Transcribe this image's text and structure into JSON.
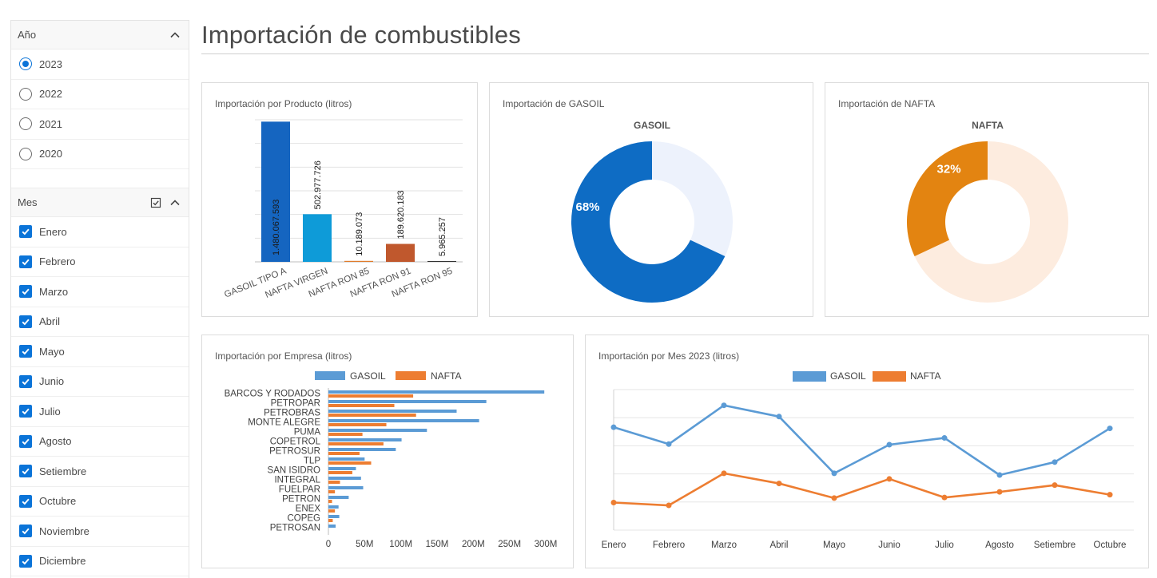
{
  "filters": {
    "year": {
      "title": "Año",
      "options": [
        "2023",
        "2022",
        "2021",
        "2020"
      ],
      "selected": "2023"
    },
    "month": {
      "title": "Mes",
      "options": [
        "Enero",
        "Febrero",
        "Marzo",
        "Abril",
        "Mayo",
        "Junio",
        "Julio",
        "Agosto",
        "Setiembre",
        "Octubre",
        "Noviembre",
        "Diciembre"
      ],
      "checked": [
        "Enero",
        "Febrero",
        "Marzo",
        "Abril",
        "Mayo",
        "Junio",
        "Julio",
        "Agosto",
        "Setiembre",
        "Octubre",
        "Noviembre",
        "Diciembre"
      ]
    }
  },
  "page": {
    "title": "Importación de combustibles"
  },
  "colors": {
    "accent": "#0b74d8",
    "gasoil": "#0e6cc4",
    "nafta": "#e38411",
    "line_gasoil": "#5b9bd5",
    "line_nafta": "#ed7d31"
  },
  "chart_data": [
    {
      "type": "bar",
      "title": "Importación por Producto (litros)",
      "categories": [
        "GASOIL TIPO A",
        "NAFTA VIRGEN",
        "NAFTA RON 85",
        "NAFTA RON 91",
        "NAFTA RON 95"
      ],
      "values": [
        1480067593,
        502977726,
        10189073,
        189620183,
        5965257
      ],
      "data_labels": [
        "1.480.067.593",
        "502.977.726",
        "10.189.073",
        "189.620.183",
        "5.965.257"
      ],
      "bar_colors": [
        "#1565c0",
        "#0e9bd8",
        "#e07b2a",
        "#c0582d",
        "#333333"
      ],
      "ylim": [
        0,
        1500000000
      ],
      "grid": true
    },
    {
      "type": "pie",
      "title": "Importación de GASOIL",
      "subtitle": "GASOIL",
      "percent": 68,
      "label": "68%",
      "colors": [
        "#0e6cc4",
        "#edf2fc"
      ]
    },
    {
      "type": "pie",
      "title": "Importación de NAFTA",
      "subtitle": "NAFTA",
      "percent": 32,
      "label": "32%",
      "colors": [
        "#e38411",
        "#fdecdf"
      ]
    },
    {
      "type": "bar",
      "orientation": "horizontal",
      "title": "Importación por Empresa (litros)",
      "categories": [
        "BARCOS Y RODADOS",
        "PETROPAR",
        "PETROBRAS",
        "MONTE ALEGRE",
        "PUMA",
        "COPETROL",
        "PETROSUR",
        "TLP",
        "SAN ISIDRO",
        "INTEGRAL",
        "FUELPAR",
        "PETRON",
        "ENEX",
        "COPEG",
        "PETROSAN"
      ],
      "series": [
        {
          "name": "GASOIL",
          "values": [
            298,
            218,
            177,
            208,
            136,
            101,
            93,
            50,
            38,
            45,
            48,
            28,
            14,
            15,
            10
          ]
        },
        {
          "name": "NAFTA",
          "values": [
            117,
            91,
            121,
            80,
            47,
            76,
            43,
            59,
            33,
            16,
            9,
            5,
            9,
            6,
            0
          ]
        }
      ],
      "unit": "M",
      "xlim": [
        0,
        300
      ],
      "ticks": [
        "0",
        "50M",
        "100M",
        "150M",
        "200M",
        "250M",
        "300M"
      ],
      "legend": "top"
    },
    {
      "type": "line",
      "title": "Importación por Mes 2023 (litros)",
      "categories": [
        "Enero",
        "Febrero",
        "Marzo",
        "Abril",
        "Mayo",
        "Junio",
        "Julio",
        "Agosto",
        "Setiembre",
        "Octubre"
      ],
      "series": [
        {
          "name": "GASOIL",
          "values": [
            183,
            153,
            222,
            202,
            101,
            152,
            164,
            98,
            121,
            181
          ]
        },
        {
          "name": "NAFTA",
          "values": [
            49,
            44,
            101,
            83,
            57,
            91,
            58,
            68,
            80,
            63
          ]
        }
      ],
      "ylim": [
        0,
        250
      ],
      "legend": "top",
      "grid": true
    }
  ]
}
